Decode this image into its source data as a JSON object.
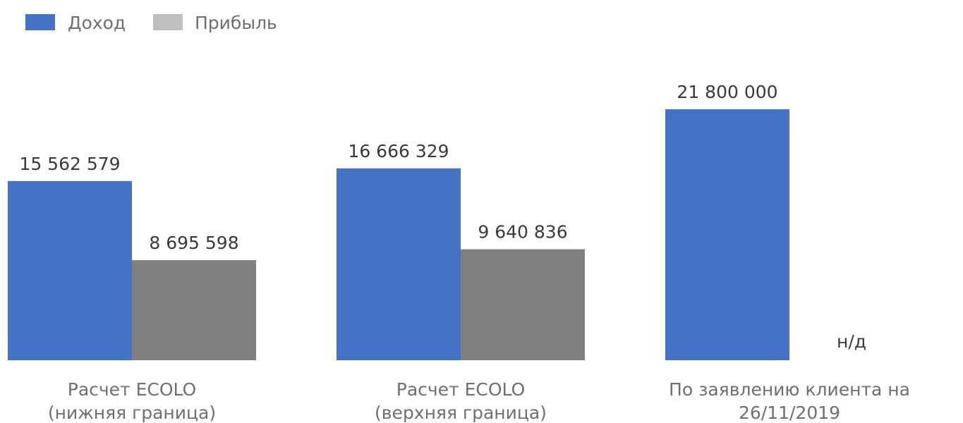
{
  "chart_data": {
    "type": "bar",
    "categories": [
      [
        "Расчет ECOLO",
        "(нижняя граница)"
      ],
      [
        "Расчет ECOLO",
        "(верхняя граница)"
      ],
      [
        "По заявлению клиента на",
        "26/11/2019"
      ]
    ],
    "series": [
      {
        "name": "Доход",
        "color": "#4472C4",
        "values": [
          15562579,
          16666329,
          21800000
        ],
        "labels": [
          "15 562 579",
          "16 666 329",
          "21 800 000"
        ]
      },
      {
        "name": "Прибыль",
        "color": "#808080",
        "legend_color": "#BFBFBF",
        "values": [
          8695598,
          9640836,
          null
        ],
        "labels": [
          "8 695 598",
          "9 640 836",
          "н/д"
        ]
      }
    ],
    "ylim": [
      0,
      27000000
    ],
    "grid": false,
    "legend_position": "top-left"
  }
}
